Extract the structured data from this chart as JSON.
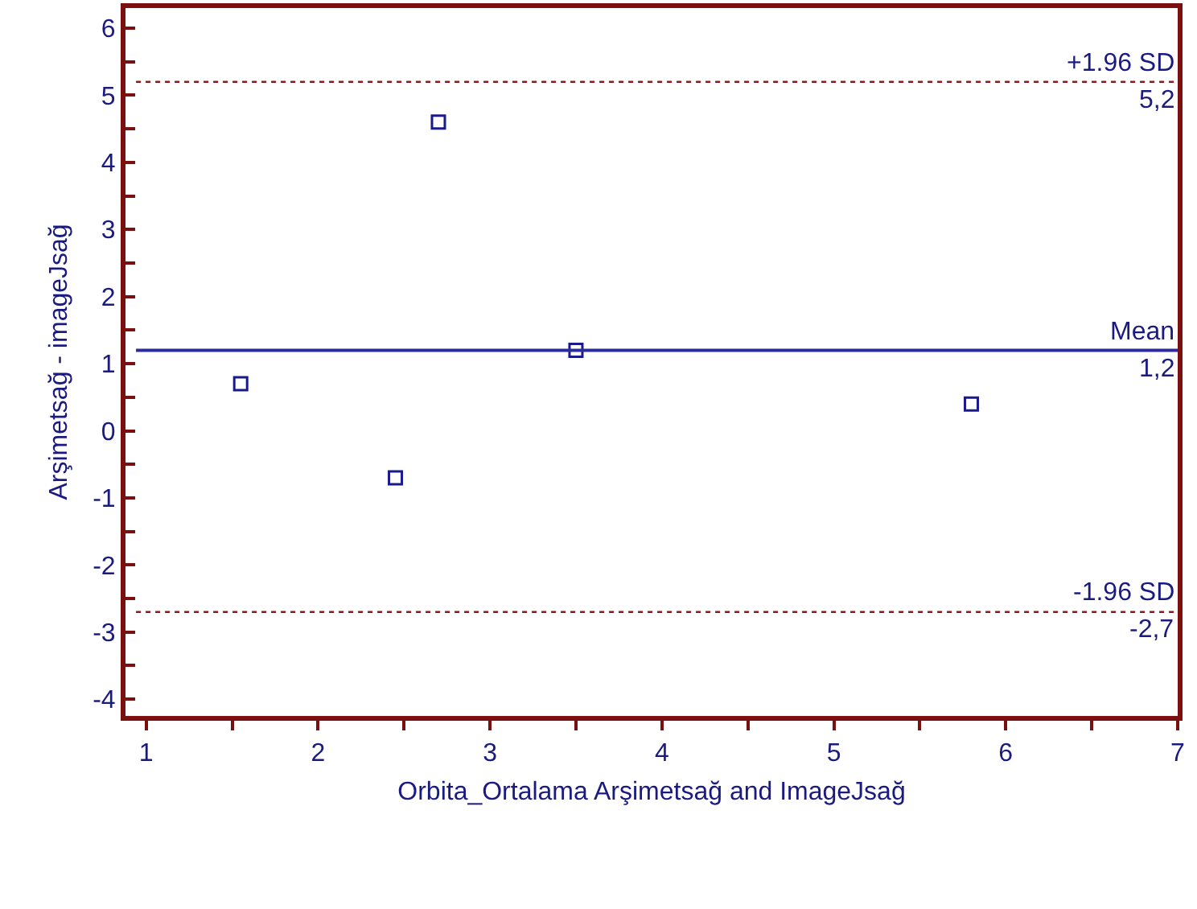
{
  "chart_data": {
    "type": "scatter",
    "xlabel": "Orbita_Ortalama Arşimetsağ and ImageJsağ",
    "ylabel": "Arşimetsağ - imageJsağ",
    "x": [
      1.55,
      2.45,
      2.7,
      3.5,
      5.8
    ],
    "series": [
      {
        "color": "#1a1a8c",
        "values": [
          0.7,
          -0.7,
          4.6,
          1.2,
          0.4
        ]
      }
    ],
    "marker": "square",
    "grid": false,
    "xlim": [
      0.88,
      7
    ],
    "xticks": [
      1,
      {
        "value": 1.5,
        "label": null
      },
      2,
      {
        "value": 2.5,
        "label": null
      },
      3,
      {
        "value": 3.5,
        "label": null
      },
      4,
      {
        "value": 4.5,
        "label": null
      },
      5,
      {
        "value": 5.5,
        "label": null
      },
      6,
      {
        "value": 6.5,
        "label": null
      },
      7
    ],
    "ylim": [
      -4.25,
      6.3
    ],
    "yticks": [
      -4,
      {
        "value": -3.5,
        "label": null
      },
      -3,
      {
        "value": -2.5,
        "label": null
      },
      -2,
      {
        "value": -1.5,
        "label": null
      },
      -1,
      {
        "value": -0.5,
        "label": null
      },
      0,
      {
        "value": 0.5,
        "label": null
      },
      1,
      {
        "value": 1.5,
        "label": null
      },
      2,
      {
        "value": 2.5,
        "label": null
      },
      3,
      {
        "value": 3.5,
        "label": null
      },
      4,
      {
        "value": 4.5,
        "label": null
      },
      5,
      {
        "value": 5.5,
        "label": null
      },
      6
    ],
    "ref_lines": [
      {
        "axis": "y",
        "value": 5.2,
        "label": "+1.96 SD",
        "color": "#8b1a1a",
        "line_style": "dotted"
      },
      {
        "axis": "y",
        "value": 1.2,
        "label": "Mean",
        "color": "#2b2b9a",
        "line_style": "solid"
      },
      {
        "axis": "y",
        "value": -2.7,
        "label": "-1.96 SD",
        "color": "#8b1a1a",
        "line_style": "dotted"
      }
    ],
    "annotations": [
      {
        "text": "5,2",
        "y": 5.2
      },
      {
        "text": "1,2",
        "y": 1.2
      },
      {
        "text": "-2,7",
        "y": -2.7
      }
    ]
  }
}
